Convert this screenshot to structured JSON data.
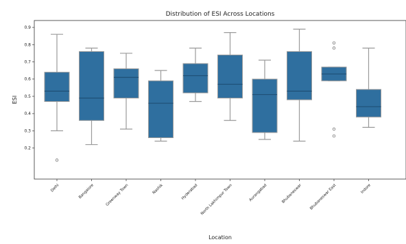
{
  "chart_data": {
    "type": "box",
    "title": "Distribution of ESI Across Locations",
    "xlabel": "Location",
    "ylabel": "ESI",
    "ylim": [
      0.02,
      0.94
    ],
    "yticks": [
      "0.2",
      "0.3",
      "0.4",
      "0.5",
      "0.6",
      "0.7",
      "0.8",
      "0.9"
    ],
    "ytick_values": [
      0.2,
      0.3,
      0.4,
      0.5,
      0.6,
      0.7,
      0.8,
      0.9
    ],
    "color": "#2f6f9f",
    "line_color": "#9a9a9a",
    "categories": [
      {
        "label": "Delhi",
        "whisker_low": 0.3,
        "q1": 0.47,
        "median": 0.53,
        "q3": 0.64,
        "whisker_high": 0.86,
        "outliers": [
          0.13
        ]
      },
      {
        "label": "Bangalore",
        "whisker_low": 0.22,
        "q1": 0.36,
        "median": 0.49,
        "q3": 0.76,
        "whisker_high": 0.78,
        "outliers": []
      },
      {
        "label": "Greenway Town",
        "whisker_low": 0.31,
        "q1": 0.49,
        "median": 0.61,
        "q3": 0.66,
        "whisker_high": 0.75,
        "outliers": []
      },
      {
        "label": "Nashik",
        "whisker_low": 0.24,
        "q1": 0.26,
        "median": 0.46,
        "q3": 0.59,
        "whisker_high": 0.65,
        "outliers": []
      },
      {
        "label": "Hyderabad",
        "whisker_low": 0.47,
        "q1": 0.52,
        "median": 0.62,
        "q3": 0.69,
        "whisker_high": 0.78,
        "outliers": []
      },
      {
        "label": "North Lakhimpur Town",
        "whisker_low": 0.36,
        "q1": 0.49,
        "median": 0.57,
        "q3": 0.74,
        "whisker_high": 0.87,
        "outliers": []
      },
      {
        "label": "Aurangabad",
        "whisker_low": 0.25,
        "q1": 0.29,
        "median": 0.51,
        "q3": 0.6,
        "whisker_high": 0.71,
        "outliers": []
      },
      {
        "label": "Bhubaneswar",
        "whisker_low": 0.24,
        "q1": 0.48,
        "median": 0.53,
        "q3": 0.76,
        "whisker_high": 0.89,
        "outliers": []
      },
      {
        "label": "Bhubaneswar East",
        "whisker_low": 0.59,
        "q1": 0.59,
        "median": 0.63,
        "q3": 0.67,
        "whisker_high": 0.67,
        "outliers": [
          0.78,
          0.81,
          0.27,
          0.31
        ]
      },
      {
        "label": "Indore",
        "whisker_low": 0.32,
        "q1": 0.38,
        "median": 0.44,
        "q3": 0.54,
        "whisker_high": 0.78,
        "outliers": []
      }
    ]
  }
}
